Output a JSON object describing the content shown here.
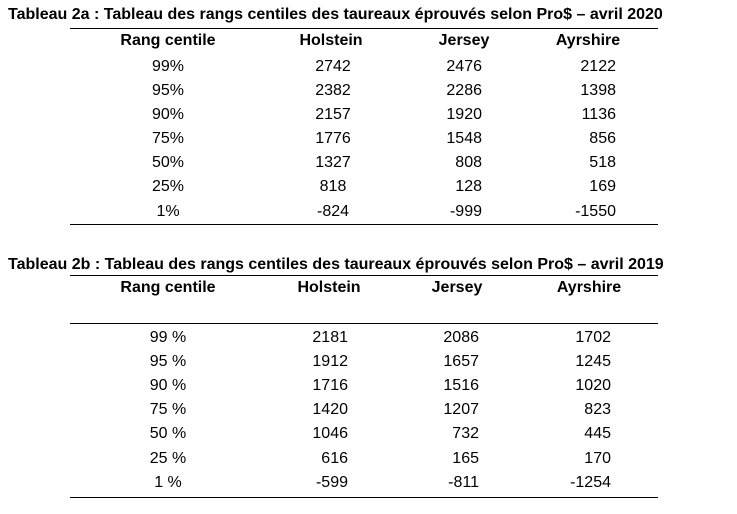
{
  "table_2a": {
    "title": "Tableau 2a : Tableau des rangs centiles des taureaux éprouvés selon Pro$ – avril 2020",
    "headers": [
      "Rang centile",
      "Holstein",
      "Jersey",
      "Ayrshire"
    ],
    "rows": [
      [
        "99%",
        "2742",
        "2476",
        "2122"
      ],
      [
        "95%",
        "2382",
        "2286",
        "1398"
      ],
      [
        "90%",
        "2157",
        "1920",
        "1136"
      ],
      [
        "75%",
        "1776",
        "1548",
        "856"
      ],
      [
        "50%",
        "1327",
        "808",
        "518"
      ],
      [
        "25%",
        "818",
        "128",
        "169"
      ],
      [
        "1%",
        "-824",
        "-999",
        "-1550"
      ]
    ]
  },
  "table_2b": {
    "title": "Tableau 2b : Tableau des rangs centiles des taureaux éprouvés selon Pro$  – avril 2019",
    "headers": [
      "Rang centile",
      "Holstein",
      "Jersey",
      "Ayrshire"
    ],
    "rows": [
      [
        "99 %",
        "2181",
        "2086",
        "1702"
      ],
      [
        "95 %",
        "1912",
        "1657",
        "1245"
      ],
      [
        "90 %",
        "1716",
        "1516",
        "1020"
      ],
      [
        "75 %",
        "1420",
        "1207",
        "823"
      ],
      [
        "50 %",
        "1046",
        "732",
        "445"
      ],
      [
        "25 %",
        "616",
        "165",
        "170"
      ],
      [
        "1 %",
        "-599",
        "-811",
        "-1254"
      ]
    ]
  }
}
